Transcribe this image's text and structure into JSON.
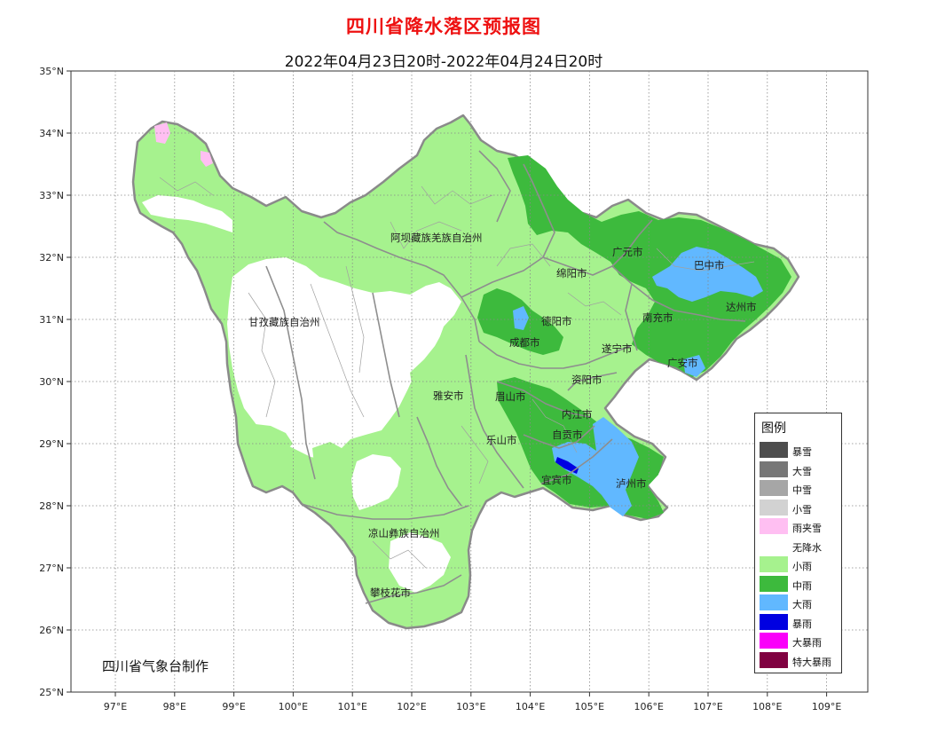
{
  "title": "四川省降水落区预报图",
  "subtitle": "2022年04月23日20时-2022年04月24日20时",
  "credit": "四川省气象台制作",
  "axes": {
    "y_ticks": [
      "35°N",
      "34°N",
      "33°N",
      "32°N",
      "31°N",
      "30°N",
      "29°N",
      "28°N",
      "27°N",
      "26°N",
      "25°N"
    ],
    "x_ticks": [
      "97°E",
      "98°E",
      "99°E",
      "100°E",
      "101°E",
      "102°E",
      "103°E",
      "104°E",
      "105°E",
      "106°E",
      "107°E",
      "108°E",
      "109°E"
    ]
  },
  "regions": [
    {
      "name": "阿坝藏族羌族自治州"
    },
    {
      "name": "甘孜藏族自治州"
    },
    {
      "name": "绵阳市"
    },
    {
      "name": "广元市"
    },
    {
      "name": "巴中市"
    },
    {
      "name": "达州市"
    },
    {
      "name": "南充市"
    },
    {
      "name": "德阳市"
    },
    {
      "name": "成都市"
    },
    {
      "name": "遂宁市"
    },
    {
      "name": "广安市"
    },
    {
      "name": "资阳市"
    },
    {
      "name": "雅安市"
    },
    {
      "name": "眉山市"
    },
    {
      "name": "内江市"
    },
    {
      "name": "自贡市"
    },
    {
      "name": "乐山市"
    },
    {
      "name": "宜宾市"
    },
    {
      "name": "泸州市"
    },
    {
      "name": "凉山彝族自治州"
    },
    {
      "name": "攀枝花市"
    }
  ],
  "legend": {
    "title": "图例",
    "items": [
      {
        "label": "暴雪",
        "color": "#4d4d4d"
      },
      {
        "label": "大雪",
        "color": "#777777"
      },
      {
        "label": "中雪",
        "color": "#a6a6a6"
      },
      {
        "label": "小雪",
        "color": "#d2d2d2"
      },
      {
        "label": "雨夹雪",
        "color": "#ffbff2"
      },
      {
        "label": "无降水",
        "color": "#ffffff"
      },
      {
        "label": "小雨",
        "color": "#a6f28e"
      },
      {
        "label": "中雨",
        "color": "#3dba3d"
      },
      {
        "label": "大雨",
        "color": "#61b8ff"
      },
      {
        "label": "暴雨",
        "color": "#0000e1"
      },
      {
        "label": "大暴雨",
        "color": "#fa00fa"
      },
      {
        "label": "特大暴雨",
        "color": "#800040"
      }
    ]
  }
}
